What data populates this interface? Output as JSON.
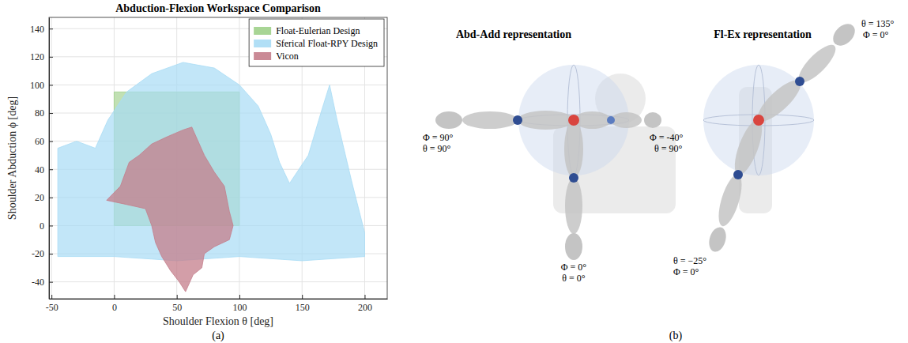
{
  "chart_data": {
    "type": "polygon",
    "title": "Abduction-Flexion Workspace Comparison",
    "x_label": "Shoulder Flexion θ [deg]",
    "y_label": "Shoulder Abduction ϕ [deg]",
    "annotations": [
      "(a)"
    ],
    "xlim": [
      -52,
      218
    ],
    "xticks": [
      -50,
      0,
      50,
      100,
      150,
      200
    ],
    "ylim": [
      -52,
      148
    ],
    "yticks": [
      -40,
      -20,
      0,
      20,
      40,
      60,
      80,
      100,
      120,
      140
    ],
    "grid": true,
    "legend": "upper right",
    "series": [
      {
        "name": "Float-Eulerian Design",
        "color": "#9fd08a",
        "x": [
          0,
          100,
          100,
          0
        ],
        "values": [
          0,
          0,
          95,
          95
        ]
      },
      {
        "name": "Sferical Float-RPY Design",
        "color": "#a8dcf5",
        "x": [
          -45,
          -45,
          -30,
          -15,
          -5,
          10,
          30,
          55,
          80,
          100,
          115,
          125,
          132,
          140,
          155,
          165,
          172,
          178,
          190,
          200,
          200,
          150,
          100,
          50,
          0
        ],
        "values": [
          -22,
          55,
          60,
          55,
          75,
          95,
          108,
          116,
          112,
          100,
          85,
          65,
          45,
          30,
          50,
          80,
          100,
          75,
          30,
          -5,
          -22,
          -25,
          -22,
          -25,
          -22
        ]
      },
      {
        "name": "Vicon",
        "color": "#c47d8b",
        "x": [
          -6,
          5,
          12,
          20,
          30,
          42,
          55,
          62,
          66,
          72,
          80,
          88,
          92,
          95,
          92,
          80,
          72,
          70,
          63,
          57,
          52,
          45,
          38,
          33,
          30,
          25,
          10
        ],
        "values": [
          18,
          28,
          45,
          50,
          58,
          63,
          68,
          70,
          62,
          50,
          38,
          28,
          10,
          0,
          -10,
          -15,
          -20,
          -30,
          -35,
          -47,
          -40,
          -32,
          -22,
          -12,
          0,
          12,
          15
        ]
      }
    ]
  },
  "diagram": {
    "caption": "(b)",
    "panels": [
      {
        "title": "Abd-Add representation",
        "poses": [
          {
            "lines": [
              "Φ = 90°",
              "θ = 90°"
            ]
          },
          {
            "lines": [
              "Φ = -40°",
              "θ = 90°"
            ]
          },
          {
            "lines": [
              "Φ = 0°",
              "θ = 0°"
            ]
          }
        ]
      },
      {
        "title": "Fl-Ex representation",
        "poses": [
          {
            "lines": [
              "θ = 135°",
              "Φ = 0°"
            ]
          },
          {
            "lines": [
              "θ = −25°",
              "Φ = 0°"
            ]
          }
        ]
      }
    ]
  }
}
